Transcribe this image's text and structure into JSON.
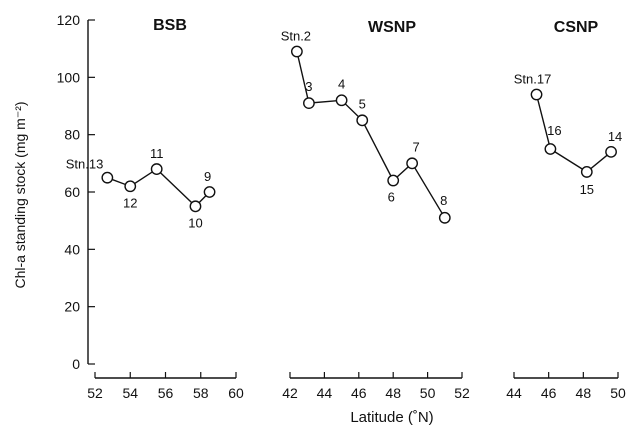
{
  "chart_data": {
    "type": "line",
    "ylabel": "Chl-a standing stock (mg m⁻²)",
    "xlabel": "Latitude (˚N)",
    "ylim": [
      0,
      120
    ],
    "yticks": [
      0,
      20,
      40,
      60,
      80,
      100,
      120
    ],
    "grid": false,
    "panels": [
      {
        "title": "BSB",
        "xlim": [
          52,
          60
        ],
        "xticks": [
          52,
          54,
          56,
          58,
          60
        ],
        "points": [
          {
            "label": "Stn.13",
            "x": 52.7,
            "y": 65
          },
          {
            "label": "12",
            "x": 54.0,
            "y": 62
          },
          {
            "label": "11",
            "x": 55.5,
            "y": 68
          },
          {
            "label": "10",
            "x": 57.7,
            "y": 55
          },
          {
            "label": "9",
            "x": 58.5,
            "y": 60
          }
        ]
      },
      {
        "title": "WSNP",
        "xlim": [
          42,
          52
        ],
        "xticks": [
          42,
          44,
          46,
          48,
          50,
          52
        ],
        "points": [
          {
            "label": "Stn.2",
            "x": 42.4,
            "y": 109
          },
          {
            "label": "3",
            "x": 43.1,
            "y": 91
          },
          {
            "label": "4",
            "x": 45.0,
            "y": 92
          },
          {
            "label": "5",
            "x": 46.2,
            "y": 85
          },
          {
            "label": "6",
            "x": 48.0,
            "y": 64
          },
          {
            "label": "7",
            "x": 49.1,
            "y": 70
          },
          {
            "label": "8",
            "x": 51.0,
            "y": 51
          }
        ]
      },
      {
        "title": "CSNP",
        "xlim": [
          44,
          50
        ],
        "xticks": [
          44,
          46,
          48,
          50
        ],
        "points": [
          {
            "label": "Stn.17",
            "x": 45.3,
            "y": 94
          },
          {
            "label": "16",
            "x": 46.1,
            "y": 75
          },
          {
            "label": "15",
            "x": 48.2,
            "y": 67
          },
          {
            "label": "14",
            "x": 49.6,
            "y": 74
          }
        ]
      }
    ]
  }
}
